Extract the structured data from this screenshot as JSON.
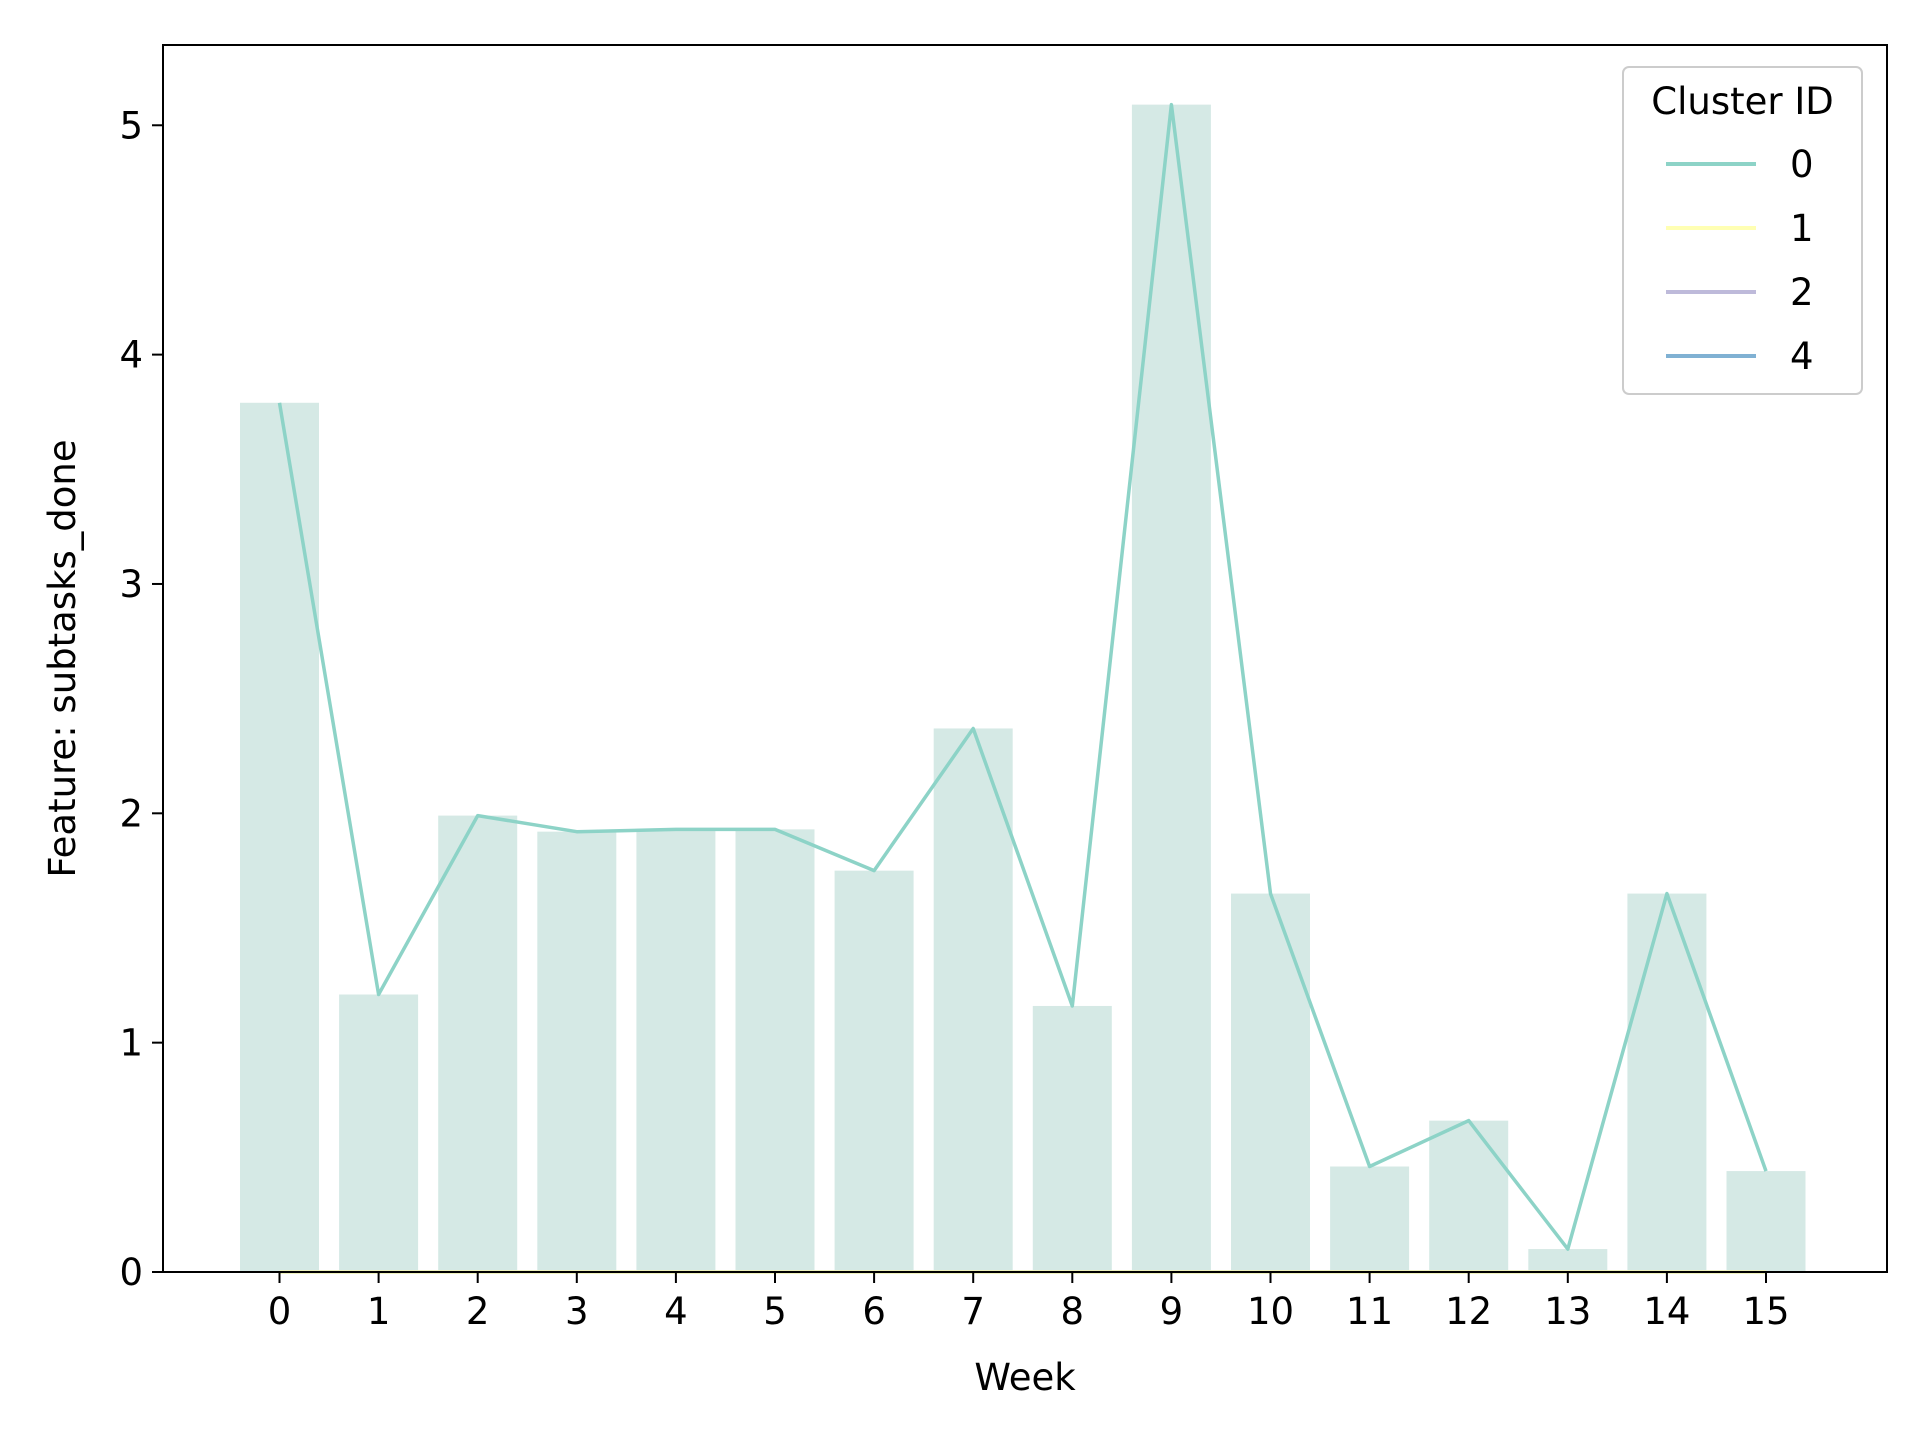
{
  "chart_data": {
    "type": "bar",
    "xlabel": "Week",
    "ylabel": "Feature: subtasks_done",
    "categories": [
      "0",
      "1",
      "2",
      "3",
      "4",
      "5",
      "6",
      "7",
      "8",
      "9",
      "10",
      "11",
      "12",
      "13",
      "14",
      "15"
    ],
    "ylim": [
      0,
      5.35
    ],
    "yticks": [
      0,
      1,
      2,
      3,
      4,
      5
    ],
    "grid": false,
    "bars": {
      "values": [
        3.79,
        1.21,
        1.99,
        1.92,
        1.93,
        1.93,
        1.75,
        2.37,
        1.16,
        5.09,
        1.65,
        0.46,
        0.66,
        0.1,
        1.65,
        0.44
      ],
      "color": "#d5e9e5"
    },
    "legend": {
      "title": "Cluster ID",
      "placement": "top-right"
    },
    "series": [
      {
        "name": "0",
        "color": "#8dd3c7",
        "values": [
          3.79,
          1.21,
          1.99,
          1.92,
          1.93,
          1.93,
          1.75,
          2.37,
          1.16,
          5.09,
          1.65,
          0.46,
          0.66,
          0.1,
          1.65,
          0.44
        ]
      },
      {
        "name": "1",
        "color": "#ffffb3",
        "values": [
          0,
          0,
          0,
          0,
          0,
          0,
          0,
          0,
          0,
          0,
          0,
          0,
          0,
          0,
          0,
          0
        ]
      },
      {
        "name": "2",
        "color": "#bebada",
        "values": [
          0,
          0,
          0,
          0,
          0,
          0,
          0,
          0,
          0,
          0,
          0,
          0,
          0,
          0,
          0,
          0
        ]
      },
      {
        "name": "4",
        "color": "#80b1d3",
        "values": [
          0,
          0,
          0,
          0,
          0,
          0,
          0,
          0,
          0,
          0,
          0,
          0,
          0,
          0,
          0,
          0
        ]
      }
    ]
  }
}
